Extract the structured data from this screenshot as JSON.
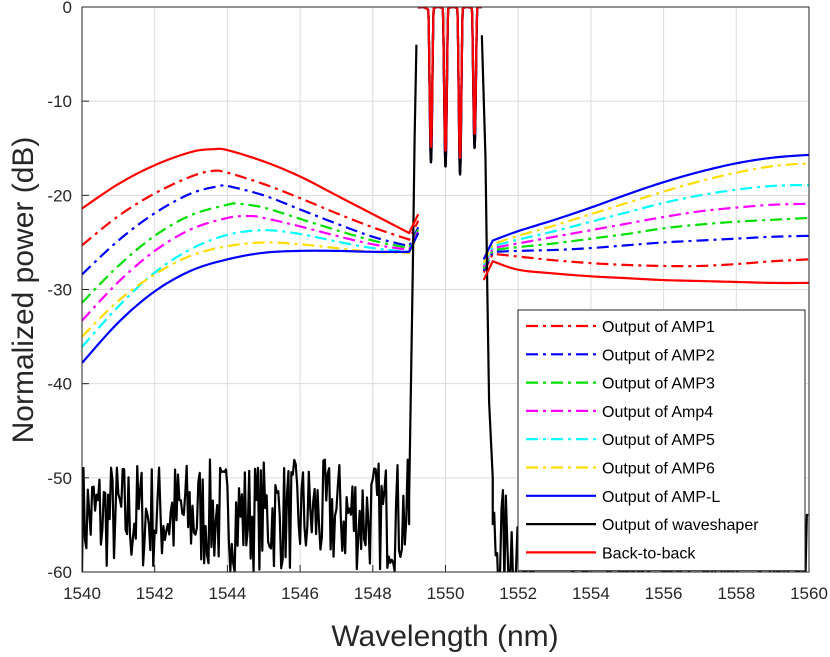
{
  "chart_data": {
    "type": "line",
    "title": "",
    "xlabel": "Wavelength (nm)",
    "ylabel": "Normalized power (dB)",
    "xlim": [
      1540,
      1560
    ],
    "ylim": [
      -60,
      0
    ],
    "xticks": [
      1540,
      1542,
      1544,
      1546,
      1548,
      1550,
      1552,
      1554,
      1556,
      1558,
      1560
    ],
    "yticks": [
      0,
      -10,
      -20,
      -30,
      -40,
      -50,
      -60
    ],
    "grid": true,
    "legend_position": "bottom-right",
    "series": [
      {
        "name": "Output of AMP1",
        "color": "#ff0000",
        "dash": "dashdot",
        "points": [
          [
            1540,
            -25.3
          ],
          [
            1541,
            -22.2
          ],
          [
            1542,
            -19.8
          ],
          [
            1543,
            -18.0
          ],
          [
            1543.6,
            -17.4
          ],
          [
            1544,
            -17.6
          ],
          [
            1545,
            -18.8
          ],
          [
            1546,
            -20.3
          ],
          [
            1547,
            -21.9
          ],
          [
            1548,
            -23.4
          ],
          [
            1549,
            -24.7
          ]
        ],
        "right_points": [
          [
            1551.3,
            -26.2
          ],
          [
            1552,
            -26.5
          ],
          [
            1553,
            -26.9
          ],
          [
            1554,
            -27.2
          ],
          [
            1555,
            -27.4
          ],
          [
            1556,
            -27.5
          ],
          [
            1557,
            -27.5
          ],
          [
            1558,
            -27.3
          ],
          [
            1559,
            -27.0
          ],
          [
            1560,
            -26.8
          ]
        ]
      },
      {
        "name": "Output of AMP2",
        "color": "#0000ff",
        "dash": "dashdot",
        "points": [
          [
            1540,
            -28.4
          ],
          [
            1541,
            -24.8
          ],
          [
            1542,
            -21.9
          ],
          [
            1543,
            -19.8
          ],
          [
            1543.8,
            -19.0
          ],
          [
            1544,
            -19.0
          ],
          [
            1545,
            -20.0
          ],
          [
            1546,
            -21.5
          ],
          [
            1547,
            -23.0
          ],
          [
            1548,
            -24.4
          ],
          [
            1549,
            -25.4
          ]
        ],
        "right_points": [
          [
            1551.3,
            -26.0
          ],
          [
            1552,
            -25.9
          ],
          [
            1553,
            -25.8
          ],
          [
            1554,
            -25.6
          ],
          [
            1555,
            -25.3
          ],
          [
            1556,
            -25.0
          ],
          [
            1557,
            -24.8
          ],
          [
            1558,
            -24.6
          ],
          [
            1559,
            -24.4
          ],
          [
            1560,
            -24.3
          ]
        ]
      },
      {
        "name": "Output of AMP3",
        "color": "#00e000",
        "dash": "dashdot",
        "points": [
          [
            1540,
            -31.4
          ],
          [
            1541,
            -27.5
          ],
          [
            1542,
            -24.3
          ],
          [
            1543,
            -22.1
          ],
          [
            1544,
            -21.0
          ],
          [
            1544.3,
            -20.9
          ],
          [
            1545,
            -21.3
          ],
          [
            1546,
            -22.5
          ],
          [
            1547,
            -23.7
          ],
          [
            1548,
            -24.8
          ],
          [
            1549,
            -25.6
          ]
        ],
        "right_points": [
          [
            1551.3,
            -25.8
          ],
          [
            1552,
            -25.5
          ],
          [
            1553,
            -25.1
          ],
          [
            1554,
            -24.6
          ],
          [
            1555,
            -24.1
          ],
          [
            1556,
            -23.5
          ],
          [
            1557,
            -23.1
          ],
          [
            1558,
            -22.8
          ],
          [
            1559,
            -22.6
          ],
          [
            1560,
            -22.4
          ]
        ]
      },
      {
        "name": "Output of Amp4",
        "color": "#ff00ff",
        "dash": "dashdot",
        "points": [
          [
            1540,
            -33.3
          ],
          [
            1541,
            -29.2
          ],
          [
            1542,
            -25.9
          ],
          [
            1543,
            -23.6
          ],
          [
            1544,
            -22.4
          ],
          [
            1544.6,
            -22.2
          ],
          [
            1545,
            -22.4
          ],
          [
            1546,
            -23.3
          ],
          [
            1547,
            -24.3
          ],
          [
            1548,
            -25.2
          ],
          [
            1549,
            -25.8
          ]
        ],
        "right_points": [
          [
            1551.3,
            -25.6
          ],
          [
            1552,
            -25.1
          ],
          [
            1553,
            -24.4
          ],
          [
            1554,
            -23.7
          ],
          [
            1555,
            -23.0
          ],
          [
            1556,
            -22.3
          ],
          [
            1557,
            -21.7
          ],
          [
            1558,
            -21.3
          ],
          [
            1559,
            -21.0
          ],
          [
            1560,
            -20.9
          ]
        ]
      },
      {
        "name": "Output of AMP5",
        "color": "#00ffff",
        "dash": "dashdot",
        "points": [
          [
            1540,
            -36.1
          ],
          [
            1541,
            -31.8
          ],
          [
            1542,
            -28.2
          ],
          [
            1543,
            -25.7
          ],
          [
            1544,
            -24.2
          ],
          [
            1545,
            -23.7
          ],
          [
            1546,
            -24.1
          ],
          [
            1547,
            -24.9
          ],
          [
            1548,
            -25.6
          ],
          [
            1549,
            -26.0
          ]
        ],
        "right_points": [
          [
            1551.3,
            -25.4
          ],
          [
            1552,
            -24.7
          ],
          [
            1553,
            -23.8
          ],
          [
            1554,
            -22.8
          ],
          [
            1555,
            -21.8
          ],
          [
            1556,
            -20.8
          ],
          [
            1557,
            -20.0
          ],
          [
            1558,
            -19.4
          ],
          [
            1559,
            -19.0
          ],
          [
            1560,
            -18.9
          ]
        ]
      },
      {
        "name": "Output of AMP6",
        "color": "#ffdd00",
        "dash": "dashdot",
        "points": [
          [
            1540,
            -35.0
          ],
          [
            1541,
            -31.2
          ],
          [
            1542,
            -28.4
          ],
          [
            1543,
            -26.4
          ],
          [
            1544,
            -25.4
          ],
          [
            1545,
            -25.0
          ],
          [
            1546,
            -25.2
          ],
          [
            1547,
            -25.6
          ],
          [
            1548,
            -26.0
          ],
          [
            1549,
            -26.1
          ]
        ],
        "right_points": [
          [
            1551.3,
            -25.2
          ],
          [
            1552,
            -24.3
          ],
          [
            1553,
            -23.2
          ],
          [
            1554,
            -22.0
          ],
          [
            1555,
            -20.8
          ],
          [
            1556,
            -19.6
          ],
          [
            1557,
            -18.5
          ],
          [
            1558,
            -17.6
          ],
          [
            1559,
            -16.9
          ],
          [
            1560,
            -16.6
          ]
        ]
      },
      {
        "name": "Output of AMP-L",
        "color": "#0000ff",
        "dash": "solid",
        "points": [
          [
            1540,
            -37.8
          ],
          [
            1541,
            -33.5
          ],
          [
            1542,
            -30.2
          ],
          [
            1543,
            -28.0
          ],
          [
            1544,
            -26.8
          ],
          [
            1545,
            -26.1
          ],
          [
            1546,
            -25.9
          ],
          [
            1547,
            -25.9
          ],
          [
            1548,
            -26.0
          ],
          [
            1549,
            -26.0
          ]
        ],
        "right_points": [
          [
            1551.3,
            -24.8
          ],
          [
            1552,
            -23.8
          ],
          [
            1553,
            -22.6
          ],
          [
            1554,
            -21.3
          ],
          [
            1555,
            -19.9
          ],
          [
            1556,
            -18.6
          ],
          [
            1557,
            -17.5
          ],
          [
            1558,
            -16.6
          ],
          [
            1559,
            -16.0
          ],
          [
            1560,
            -15.7
          ]
        ]
      },
      {
        "name": "Output of waveshaper",
        "color": "#000000",
        "dash": "solid",
        "noise_floor": {
          "mean": -54,
          "spread": 6
        },
        "points": [
          [
            1549.0,
            -52.0
          ],
          [
            1549.05,
            -40.0
          ],
          [
            1549.1,
            -28.0
          ],
          [
            1549.15,
            -14.0
          ],
          [
            1549.2,
            -4.0
          ]
        ],
        "right_points": [
          [
            1551.0,
            -3.0
          ],
          [
            1551.1,
            -16.0
          ],
          [
            1551.15,
            -30.0
          ],
          [
            1551.2,
            -42.0
          ],
          [
            1551.3,
            -50.0
          ]
        ]
      },
      {
        "name": "Back-to-back",
        "color": "#ff0000",
        "dash": "solid",
        "points": [
          [
            1540,
            -21.4
          ],
          [
            1541,
            -18.8
          ],
          [
            1542,
            -16.8
          ],
          [
            1543,
            -15.4
          ],
          [
            1543.6,
            -15.1
          ],
          [
            1544,
            -15.2
          ],
          [
            1545,
            -16.4
          ],
          [
            1546,
            -18.0
          ],
          [
            1547,
            -20.0
          ],
          [
            1548,
            -22.0
          ],
          [
            1549,
            -24.0
          ]
        ],
        "right_points": [
          [
            1551.3,
            -27.0
          ],
          [
            1552,
            -27.9
          ],
          [
            1553,
            -28.3
          ],
          [
            1554,
            -28.6
          ],
          [
            1555,
            -28.8
          ],
          [
            1556,
            -29.0
          ],
          [
            1557,
            -29.1
          ],
          [
            1558,
            -29.2
          ],
          [
            1559,
            -29.3
          ],
          [
            1560,
            -29.3
          ]
        ]
      }
    ],
    "passband": {
      "start": 1549.25,
      "end": 1551.0,
      "peaks": [
        1549.35,
        1549.8,
        1550.2,
        1550.6,
        1550.95
      ],
      "dips": [
        [
          1549.6,
          -16.5
        ],
        [
          1550.0,
          -17.0
        ],
        [
          1550.4,
          -17.8
        ],
        [
          1550.8,
          -15.0
        ]
      ]
    }
  }
}
